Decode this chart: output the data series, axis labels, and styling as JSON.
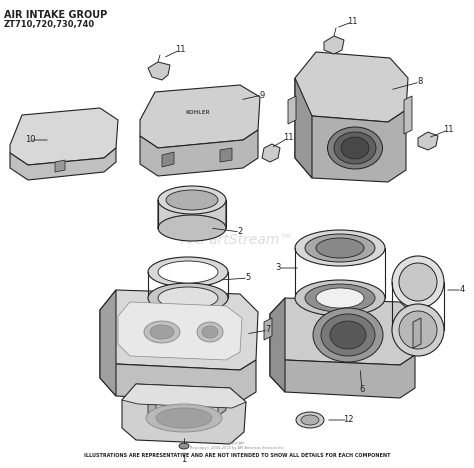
{
  "title_line1": "AIR INTAKE GROUP",
  "title_line2": "ZT710,720,730,740",
  "footer_text": "ILLUSTRATIONS ARE REPRESENTATIVE AND ARE NOT INTENDED TO SHOW ALL DETAILS FOR EACH COMPONENT",
  "watermark": "ArtPartStream™",
  "bg": "#ffffff",
  "lc": "#222222",
  "fc_light": "#e8e8e8",
  "fc_mid": "#cccccc",
  "fc_dark": "#999999",
  "fc_vdark": "#666666",
  "copyright": "Copyright\nReg copy© 2004–2015 by ARI Americas Services Inc."
}
